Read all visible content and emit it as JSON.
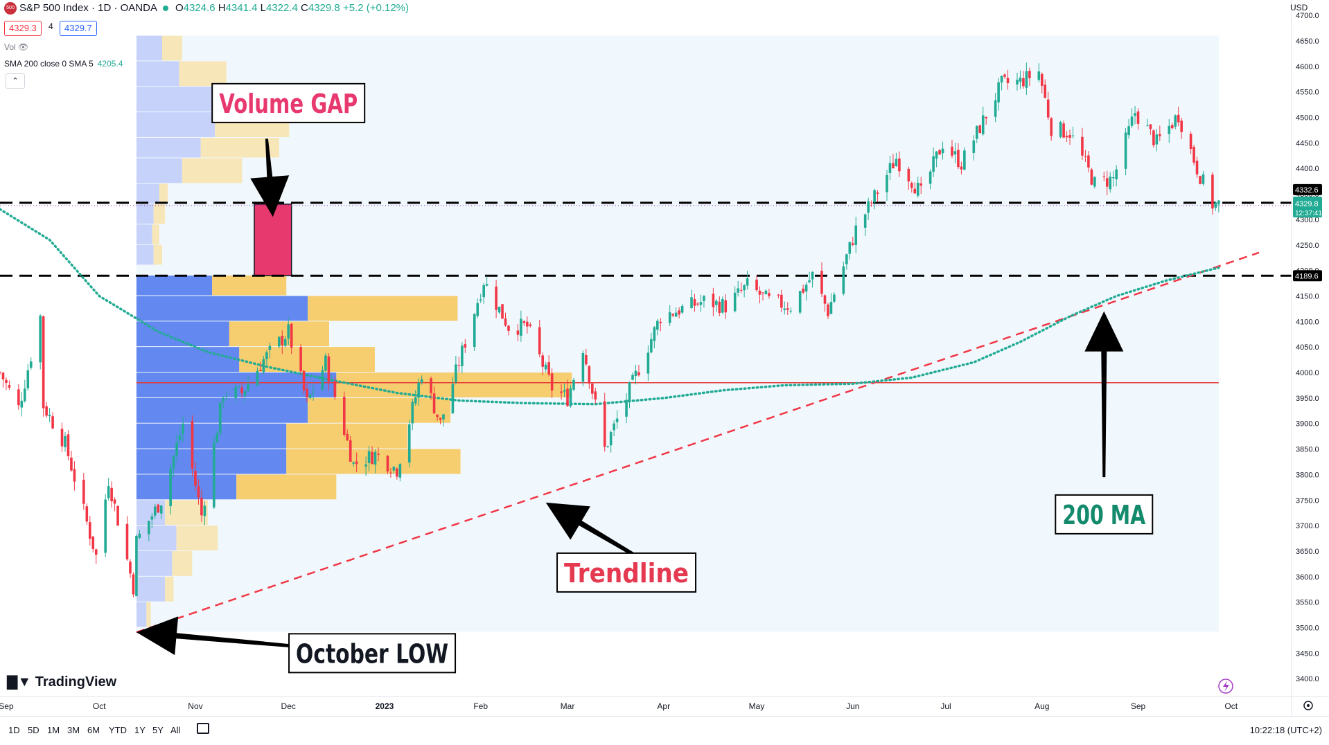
{
  "header": {
    "symbol_logo": "500",
    "title": "S&P 500 Index · 1D · OANDA",
    "ohlc": {
      "o_label": "O",
      "o": "4324.6",
      "h_label": "H",
      "h": "4341.4",
      "l_label": "L",
      "l": "4322.4",
      "c_label": "C",
      "c": "4329.8",
      "change": "+5.2 (+0.12%)"
    },
    "bid": "4329.3",
    "spread": "4",
    "ask": "4329.7",
    "vol_label": "Vol",
    "sma_label": "SMA 200 close 0 SMA 5",
    "sma_value": "4205.4",
    "currency": "USD",
    "brand": "TradingView",
    "collapse_icon": "chevron-up-icon"
  },
  "bottom_bar": {
    "periods": [
      "1D",
      "5D",
      "1M",
      "3M",
      "6M",
      "YTD",
      "1Y",
      "5Y",
      "All"
    ],
    "clock": "10:22:18 (UTC+2)"
  },
  "colors": {
    "up": "#22ab94",
    "down": "#f23645",
    "trend": "#f23645",
    "ma": "#22ab94",
    "vp_up_va": "#5b82ee",
    "vp_down_va": "#f6c85f",
    "vp_up": "#c7d2fa",
    "vp_down": "#f7e6b8",
    "gap": "#e8396f",
    "poc": "#e53935",
    "range_bg": "#f0f8fd"
  },
  "chart_data": {
    "type": "candlestick",
    "symbol": "S&P 500 Index",
    "interval": "1D",
    "ylim": [
      3365,
      4730
    ],
    "y_ticks": [
      3400,
      3450,
      3500,
      3550,
      3600,
      3650,
      3700,
      3750,
      3800,
      3850,
      3900,
      3950,
      4000,
      4050,
      4100,
      4150,
      4200,
      4250,
      4300,
      4350,
      4400,
      4450,
      4500,
      4550,
      4600,
      4650,
      4700
    ],
    "x_labels": [
      {
        "label": "Sep",
        "date": "2022-09-01"
      },
      {
        "label": "Oct",
        "date": "2022-10-01"
      },
      {
        "label": "Nov",
        "date": "2022-11-01"
      },
      {
        "label": "Dec",
        "date": "2022-12-01"
      },
      {
        "label": "2023",
        "date": "2023-01-01"
      },
      {
        "label": "Feb",
        "date": "2023-02-01"
      },
      {
        "label": "Mar",
        "date": "2023-03-01"
      },
      {
        "label": "Apr",
        "date": "2023-04-01"
      },
      {
        "label": "May",
        "date": "2023-05-01"
      },
      {
        "label": "Jun",
        "date": "2023-06-01"
      },
      {
        "label": "Jul",
        "date": "2023-07-01"
      },
      {
        "label": "Aug",
        "date": "2023-08-01"
      },
      {
        "label": "Sep",
        "date": "2023-09-01"
      },
      {
        "label": "Oct",
        "date": "2023-10-01"
      }
    ],
    "close_path": [
      [
        "2022-08-30",
        4000
      ],
      [
        "2022-09-05",
        3930
      ],
      [
        "2022-09-12",
        4110
      ],
      [
        "2022-09-13",
        3935
      ],
      [
        "2022-09-20",
        3860
      ],
      [
        "2022-09-30",
        3640
      ],
      [
        "2022-10-04",
        3790
      ],
      [
        "2022-10-12",
        3580
      ],
      [
        "2022-10-13",
        3670
      ],
      [
        "2022-10-21",
        3750
      ],
      [
        "2022-10-28",
        3900
      ],
      [
        "2022-11-03",
        3720
      ],
      [
        "2022-11-10",
        3960
      ],
      [
        "2022-11-16",
        3960
      ],
      [
        "2022-11-23",
        4025
      ],
      [
        "2022-12-01",
        4080
      ],
      [
        "2022-12-07",
        3940
      ],
      [
        "2022-12-13",
        4020
      ],
      [
        "2022-12-22",
        3820
      ],
      [
        "2022-12-29",
        3840
      ],
      [
        "2023-01-05",
        3810
      ],
      [
        "2023-01-13",
        4000
      ],
      [
        "2023-01-19",
        3900
      ],
      [
        "2023-02-02",
        4180
      ],
      [
        "2023-02-10",
        4090
      ],
      [
        "2023-02-16",
        4090
      ],
      [
        "2023-02-24",
        3970
      ],
      [
        "2023-03-01",
        3950
      ],
      [
        "2023-03-06",
        4050
      ],
      [
        "2023-03-13",
        3850
      ],
      [
        "2023-03-20",
        3950
      ],
      [
        "2023-03-31",
        4110
      ],
      [
        "2023-04-14",
        4140
      ],
      [
        "2023-04-21",
        4130
      ],
      [
        "2023-04-28",
        4170
      ],
      [
        "2023-05-05",
        4140
      ],
      [
        "2023-05-12",
        4130
      ],
      [
        "2023-05-19",
        4190
      ],
      [
        "2023-05-24",
        4120
      ],
      [
        "2023-06-02",
        4280
      ],
      [
        "2023-06-15",
        4420
      ],
      [
        "2023-06-23",
        4350
      ],
      [
        "2023-06-30",
        4450
      ],
      [
        "2023-07-06",
        4410
      ],
      [
        "2023-07-14",
        4505
      ],
      [
        "2023-07-19",
        4565
      ],
      [
        "2023-07-25",
        4570
      ],
      [
        "2023-07-31",
        4590
      ],
      [
        "2023-08-04",
        4480
      ],
      [
        "2023-08-10",
        4470
      ],
      [
        "2023-08-18",
        4370
      ],
      [
        "2023-08-24",
        4380
      ],
      [
        "2023-08-31",
        4510
      ],
      [
        "2023-09-07",
        4450
      ],
      [
        "2023-09-14",
        4505
      ],
      [
        "2023-09-20",
        4400
      ],
      [
        "2023-09-25",
        4330
      ],
      [
        "2023-09-27",
        4329.8
      ]
    ],
    "sma200": [
      [
        "2022-08-30",
        4320
      ],
      [
        "2022-09-15",
        4260
      ],
      [
        "2022-10-01",
        4150
      ],
      [
        "2022-10-20",
        4080
      ],
      [
        "2022-11-05",
        4040
      ],
      [
        "2022-11-25",
        4010
      ],
      [
        "2022-12-15",
        3985
      ],
      [
        "2023-01-05",
        3960
      ],
      [
        "2023-01-25",
        3945
      ],
      [
        "2023-02-15",
        3940
      ],
      [
        "2023-03-10",
        3938
      ],
      [
        "2023-04-01",
        3950
      ],
      [
        "2023-04-20",
        3965
      ],
      [
        "2023-05-10",
        3975
      ],
      [
        "2023-06-01",
        3978
      ],
      [
        "2023-06-20",
        3990
      ],
      [
        "2023-07-10",
        4020
      ],
      [
        "2023-07-25",
        4060
      ],
      [
        "2023-08-10",
        4110
      ],
      [
        "2023-08-25",
        4150
      ],
      [
        "2023-09-10",
        4180
      ],
      [
        "2023-09-27",
        4205.4
      ]
    ],
    "trendline": {
      "from": [
        "2022-10-13",
        3491
      ],
      "to": [
        "2023-10-10",
        4235
      ]
    },
    "horizontal_levels": [
      {
        "value": 4332.6,
        "style": "dashed"
      },
      {
        "value": 4189.6,
        "style": "dashed"
      },
      {
        "value": 3980,
        "style": "poc"
      }
    ],
    "price_labels": {
      "level_upper": "4332.6",
      "last": "4329.8",
      "countdown": "12:37:41",
      "level_lower": "4189.6"
    },
    "volume_profile": {
      "range_start": "2022-10-13",
      "range_end": "2023-09-27",
      "rows": [
        {
          "low": 4610,
          "high": 4660,
          "up": 18,
          "down": 14,
          "in_va": false
        },
        {
          "low": 4560,
          "high": 4610,
          "up": 30,
          "down": 33,
          "in_va": false
        },
        {
          "low": 4510,
          "high": 4560,
          "up": 62,
          "down": 55,
          "in_va": false
        },
        {
          "low": 4460,
          "high": 4510,
          "up": 55,
          "down": 52,
          "in_va": false
        },
        {
          "low": 4420,
          "high": 4460,
          "up": 45,
          "down": 55,
          "in_va": false
        },
        {
          "low": 4370,
          "high": 4420,
          "up": 32,
          "down": 42,
          "in_va": false
        },
        {
          "low": 4330,
          "high": 4370,
          "up": 16,
          "down": 6,
          "in_va": false
        },
        {
          "low": 4290,
          "high": 4330,
          "up": 12,
          "down": 8,
          "in_va": false
        },
        {
          "low": 4250,
          "high": 4290,
          "up": 11,
          "down": 5,
          "in_va": false
        },
        {
          "low": 4210,
          "high": 4250,
          "up": 12,
          "down": 6,
          "in_va": false
        },
        {
          "low": 4150,
          "high": 4190,
          "up": 53,
          "down": 52,
          "in_va": true
        },
        {
          "low": 4100,
          "high": 4150,
          "up": 120,
          "down": 105,
          "in_va": true
        },
        {
          "low": 4050,
          "high": 4100,
          "up": 65,
          "down": 70,
          "in_va": true
        },
        {
          "low": 4000,
          "high": 4050,
          "up": 72,
          "down": 95,
          "in_va": true
        },
        {
          "low": 3950,
          "high": 4000,
          "up": 140,
          "down": 165,
          "in_va": true
        },
        {
          "low": 3900,
          "high": 3950,
          "up": 120,
          "down": 100,
          "in_va": true
        },
        {
          "low": 3850,
          "high": 3900,
          "up": 105,
          "down": 85,
          "in_va": true
        },
        {
          "low": 3800,
          "high": 3850,
          "up": 105,
          "down": 122,
          "in_va": true
        },
        {
          "low": 3750,
          "high": 3800,
          "up": 70,
          "down": 70,
          "in_va": true
        },
        {
          "low": 3700,
          "high": 3750,
          "up": 20,
          "down": 30,
          "in_va": false
        },
        {
          "low": 3650,
          "high": 3700,
          "up": 28,
          "down": 29,
          "in_va": false
        },
        {
          "low": 3600,
          "high": 3650,
          "up": 25,
          "down": 14,
          "in_va": false
        },
        {
          "low": 3550,
          "high": 3600,
          "up": 20,
          "down": 6,
          "in_va": false
        },
        {
          "low": 3500,
          "high": 3550,
          "up": 7,
          "down": 3,
          "in_va": false
        }
      ],
      "volume_gap": {
        "low": 4190,
        "high": 4330,
        "date_from": "2022-11-20",
        "date_to": "2022-12-02"
      }
    },
    "annotations": [
      {
        "text": "Volume GAP",
        "color": "#e8396f",
        "box_at": [
          "2022-12-01",
          4528
        ],
        "arrow_from": [
          "2022-11-24",
          4458
        ],
        "arrow_to": [
          "2022-11-26",
          4305
        ]
      },
      {
        "text": "October LOW",
        "color": "#131722",
        "box_at": [
          "2022-12-28",
          3450
        ],
        "arrow_from": [
          "2022-12-10",
          3460
        ],
        "arrow_to": [
          "2022-10-13",
          3491
        ]
      },
      {
        "text": "Trendline",
        "color": "#e53950",
        "box_at": [
          "2023-03-20",
          3608
        ],
        "arrow_from": [
          "2023-03-31",
          3612
        ],
        "arrow_to": [
          "2023-02-22",
          3745
        ]
      },
      {
        "text": "200 MA",
        "color": "#138a6b",
        "box_at": [
          "2023-08-21",
          3722
        ],
        "arrow_from": [
          "2023-08-21",
          3795
        ],
        "arrow_to": [
          "2023-08-21",
          4120
        ]
      }
    ]
  }
}
